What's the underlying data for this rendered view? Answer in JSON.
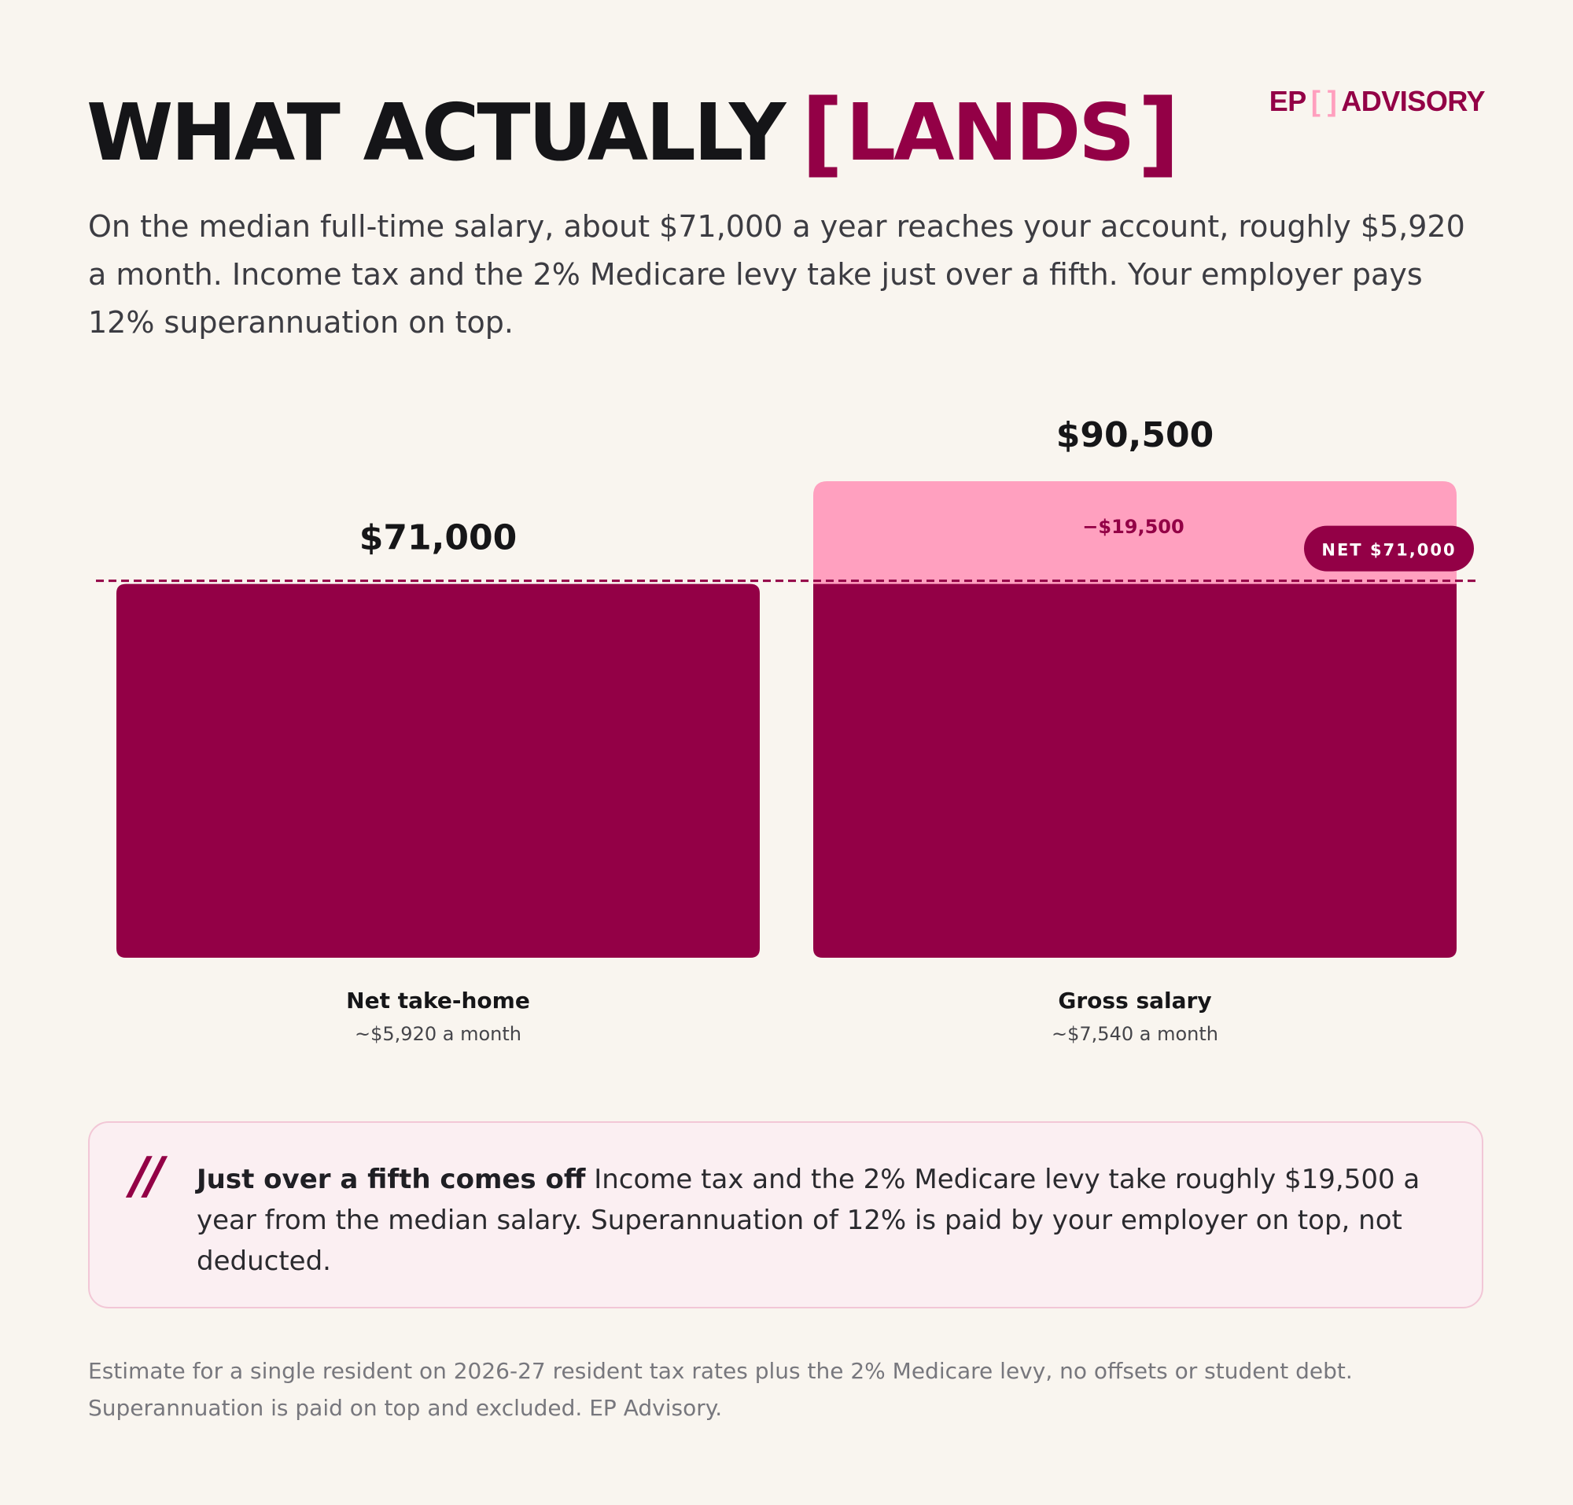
{
  "header": {
    "title_main": "WHAT ACTUALLY",
    "title_accent": "LANDS",
    "subtitle": "On the median full-time salary, about $71,000 a year reaches your account, roughly $5,920 a month. Income tax and the 2% Medicare levy take just over a fifth. Your employer pays 12% superannuation on top."
  },
  "logo": {
    "left": "EP",
    "right": "ADVISORY"
  },
  "chart_data": {
    "type": "bar",
    "categories": [
      "Net take-home",
      "Gross salary"
    ],
    "sublabels": [
      "~$5,920 a month",
      "~$7,540 a month"
    ],
    "values": [
      71000,
      90500
    ],
    "value_labels": [
      "$71,000",
      "$90,500"
    ],
    "deduction": {
      "value": 19500,
      "label": "−$19,500"
    },
    "reference_line": {
      "value": 71000,
      "label": "NET $71,000"
    },
    "ylim": [
      0,
      90500
    ],
    "grid": false,
    "colors": {
      "net": "#930046",
      "deduction": "#ffa0bf",
      "label_dark": "#161618",
      "sublabel": "#45454a"
    }
  },
  "callout": {
    "lead": "Just over a fifth comes off",
    "text": "Income tax and the 2% Medicare levy take roughly $19,500 a year from the median salary. Superannuation of 12% is paid by your employer on top, not deducted."
  },
  "footnote": "Estimate for a single resident on 2026-27 resident tax rates plus the 2% Medicare levy, no offsets or student debt. Superannuation is paid on top and excluded. EP Advisory."
}
